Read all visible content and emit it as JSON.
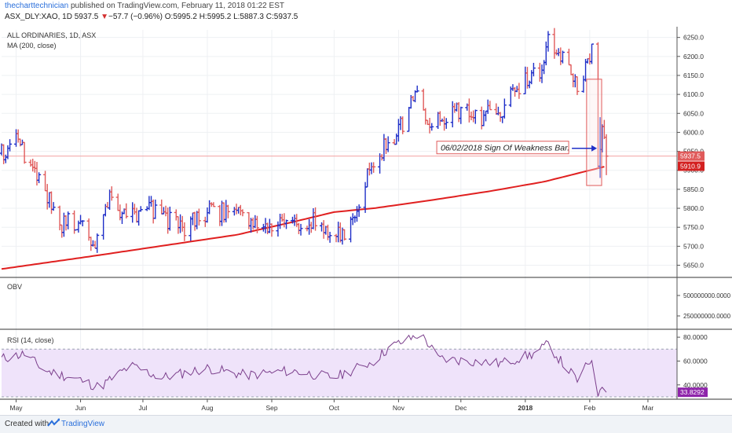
{
  "header": {
    "author": "thecharttechnician",
    "published_text": " published on TradingView.com, February 11, 2018 01:22 EST",
    "symbol": "ASX_DLY:XAO, 1D",
    "last": "5937.5",
    "change_arrow": "▼",
    "change": "−57.7 (−0.96%)",
    "open_label": "O:",
    "open": "5995.2",
    "high_label": "H:",
    "high": "5995.2",
    "low_label": "L:",
    "low": "5887.3",
    "close_label": "C:",
    "close": "5937.5"
  },
  "footer": {
    "created_with": "Created with",
    "brand": "TradingView"
  },
  "chart_data": {
    "type": "ohlc",
    "main_pane": {
      "title": "ALL ORDINARIES, 1D, ASX",
      "indicator_label": "MA (200, close)",
      "y_ticks": [
        5650,
        5700,
        5750,
        5800,
        5850,
        5900,
        5950,
        6000,
        6050,
        6100,
        6150,
        6200,
        6250
      ],
      "y_tick_labels": [
        "5650.0",
        "5700.0",
        "5750.0",
        "5800.0",
        "5850.0",
        "5900.0",
        "5950.0",
        "6000.0",
        "6050.0",
        "6100.0",
        "6150.0",
        "6200.0",
        "6250.0"
      ],
      "ylim": [
        5620,
        6270
      ],
      "price_label": "5937.5",
      "ma_label": "5910.9",
      "price_line_value": 5937.5,
      "annotation": "06/02/2018 Sign Of Weakness Bar.",
      "annotation_target_date": "2018-02-06",
      "highlight_box": {
        "from": "2018-02-01",
        "to": "2018-02-09",
        "low": 5860,
        "high": 6140
      }
    },
    "x_axis": {
      "labels": [
        "May",
        "Jun",
        "Jul",
        "Aug",
        "Sep",
        "Oct",
        "Nov",
        "Dec",
        "2018",
        "Feb",
        "Mar"
      ],
      "dates": [
        "2017-05-01",
        "2017-06-01",
        "2017-07-01",
        "2017-08-01",
        "2017-09-01",
        "2017-10-01",
        "2017-11-01",
        "2017-12-01",
        "2018-01-01",
        "2018-02-01",
        "2018-03-01"
      ],
      "start": "2017-04-24",
      "end": "2018-03-15"
    },
    "ma200": {
      "name": "MA (200, close)",
      "color": "#e02020",
      "dates": [
        "2017-04-24",
        "2017-06-08",
        "2017-07-15",
        "2017-08-15",
        "2017-09-12",
        "2017-10-01",
        "2017-10-20",
        "2017-11-15",
        "2017-12-15",
        "2018-01-10",
        "2018-02-09"
      ],
      "values": [
        5640,
        5675,
        5705,
        5730,
        5765,
        5790,
        5800,
        5820,
        5845,
        5870,
        5910.9
      ]
    },
    "ohlc_anchors": {
      "dates": [
        "2017-04-24",
        "2017-05-01",
        "2017-05-10",
        "2017-05-22",
        "2017-06-01",
        "2017-06-08",
        "2017-06-15",
        "2017-06-25",
        "2017-07-05",
        "2017-07-20",
        "2017-08-01",
        "2017-08-15",
        "2017-08-28",
        "2017-09-08",
        "2017-09-20",
        "2017-09-28",
        "2017-10-05",
        "2017-10-12",
        "2017-10-18",
        "2017-10-25",
        "2017-11-01",
        "2017-11-09",
        "2017-11-15",
        "2017-11-22",
        "2017-12-01",
        "2017-12-10",
        "2017-12-20",
        "2018-01-02",
        "2018-01-08",
        "2018-01-12",
        "2018-01-19",
        "2018-01-26",
        "2018-02-02",
        "2018-02-05",
        "2018-02-06",
        "2018-02-07",
        "2018-02-09"
      ],
      "closes": [
        5945,
        5975,
        5900,
        5760,
        5770,
        5690,
        5820,
        5780,
        5800,
        5745,
        5790,
        5790,
        5760,
        5750,
        5770,
        5740,
        5720,
        5800,
        5905,
        5960,
        6000,
        6100,
        6020,
        6040,
        6060,
        6040,
        6060,
        6140,
        6150,
        6240,
        6190,
        6120,
        6210,
        5930,
        5970,
        6010,
        5937.5
      ]
    },
    "obv_pane": {
      "title": "OBV",
      "y_tick_labels": [
        "500000000.0000",
        "250000000.0000"
      ]
    },
    "rsi_pane": {
      "title": "RSI (14, close)",
      "y_tick_labels": [
        "80.0000",
        "60.0000",
        "40.0000"
      ],
      "upper_band": 70,
      "lower_band": 30,
      "last_value": 33.8292,
      "last_label": "33.8292",
      "ylim": [
        28,
        86
      ],
      "dates": [
        "2017-04-24",
        "2017-05-05",
        "2017-05-15",
        "2017-06-01",
        "2017-06-10",
        "2017-06-25",
        "2017-07-10",
        "2017-08-01",
        "2017-08-20",
        "2017-09-10",
        "2017-10-01",
        "2017-10-20",
        "2017-10-28",
        "2017-11-06",
        "2017-11-10",
        "2017-11-14",
        "2017-11-20",
        "2017-12-05",
        "2017-12-20",
        "2018-01-05",
        "2018-01-12",
        "2018-01-18",
        "2018-01-26",
        "2018-02-02",
        "2018-02-05",
        "2018-02-07",
        "2018-02-09"
      ],
      "values": [
        62,
        66,
        52,
        44,
        38,
        56,
        46,
        54,
        48,
        52,
        46,
        60,
        72,
        78,
        82,
        78,
        62,
        60,
        58,
        66,
        74,
        60,
        44,
        62,
        34,
        38,
        33.8292
      ]
    },
    "colors": {
      "up_bar": "#1f2fc8",
      "down_bar": "#e05a5a",
      "ma": "#e02020",
      "rsi_line": "#7b3f8c",
      "rsi_fill": "#efe3fa",
      "price_badge": "#e05a5a",
      "ma_badge": "#d32020",
      "rsi_badge": "#8e24aa",
      "annotation_arrow": "#1f2fc8"
    }
  }
}
